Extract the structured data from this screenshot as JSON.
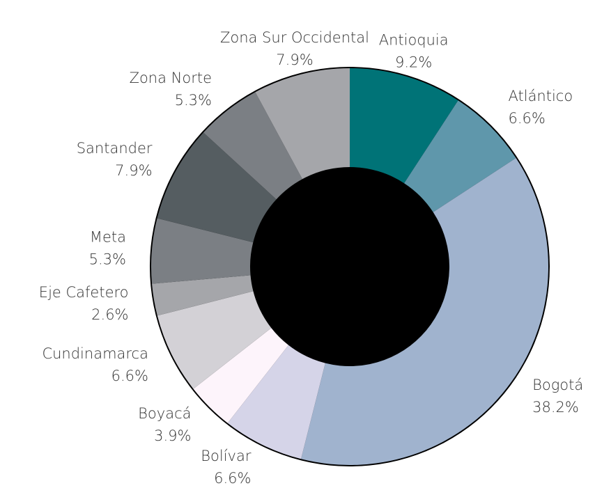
{
  "chart_data": {
    "type": "donut",
    "categories": [
      "Antioquia",
      "Atlántico",
      "Bogotá",
      "Bolívar",
      "Boyacá",
      "Cundinamarca",
      "Eje Cafetero",
      "Meta",
      "Santander",
      "Zona Norte",
      "Zona Sur Occidental"
    ],
    "values": [
      9.2,
      6.6,
      38.2,
      6.6,
      3.9,
      6.6,
      2.6,
      5.3,
      7.9,
      5.3,
      7.9
    ],
    "value_labels": [
      "9.2%",
      "6.6%",
      "38.2%",
      "6.6%",
      "3.9%",
      "6.6%",
      "2.6%",
      "5.3%",
      "7.9%",
      "5.3%",
      "7.9%"
    ],
    "colors": [
      "#007377",
      "#5f97ab",
      "#a0b3ce",
      "#d5d4e8",
      "#fdf4fb",
      "#d3d1d6",
      "#a5a6aa",
      "#7b7f84",
      "#555d61",
      "#7b7f84",
      "#a5a6aa"
    ]
  }
}
